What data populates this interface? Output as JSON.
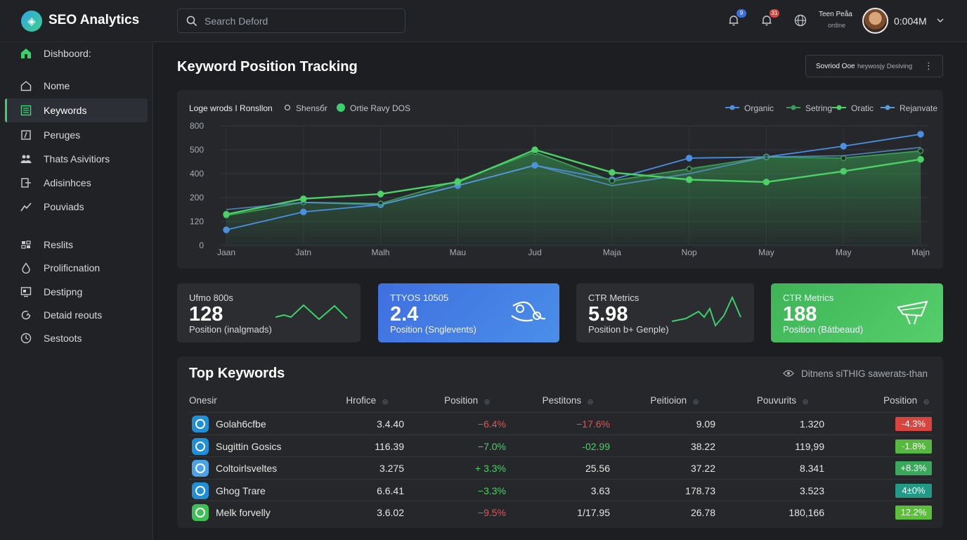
{
  "app": {
    "title": "SEO Analytics"
  },
  "search": {
    "placeholder": "Search Deford"
  },
  "notifications": {
    "badge1": "9",
    "badge2": "31"
  },
  "user": {
    "name": "Teen Peåa",
    "status": "ordine",
    "time": "0:004M"
  },
  "sidebar": {
    "items": [
      {
        "label": "Dishboord:",
        "icon": "home-filled-icon"
      },
      {
        "label": "Nome",
        "icon": "home-icon"
      },
      {
        "label": "Keywords",
        "icon": "list-icon",
        "active": true
      },
      {
        "label": "Peruges",
        "icon": "chart-icon"
      },
      {
        "label": "Thats Asivitiors",
        "icon": "users-icon"
      },
      {
        "label": "Adisinhces",
        "icon": "export-icon"
      },
      {
        "label": "Pouviads",
        "icon": "trend-icon"
      },
      {
        "label": "Reslits",
        "icon": "results-icon"
      },
      {
        "label": "Prolificnation",
        "icon": "drop-icon"
      },
      {
        "label": "Destipng",
        "icon": "desktop-icon"
      },
      {
        "label": "Detaid reouts",
        "icon": "refresh-icon"
      },
      {
        "label": "Sestoots",
        "icon": "clock-icon"
      }
    ]
  },
  "main": {
    "title": "Keyword Position Tracking",
    "period": {
      "label": "Sovriod Ooe",
      "sub": "heywosjy Deslving"
    }
  },
  "chart_data": {
    "type": "line",
    "title": "Loge wrods I Ronsllon",
    "toolbar": [
      "Shensбr",
      "Ortie Ravy DOS"
    ],
    "legend": [
      "Organic",
      "Setring",
      "Oratic",
      "Rejanvate"
    ],
    "legend_position": "top-right",
    "categories": [
      "Jaan",
      "Jatn",
      "Malh",
      "Mau",
      "Jud",
      "Maja",
      "Nop",
      "May",
      "May",
      "Majn"
    ],
    "y_ticks": [
      "800",
      "500",
      "400",
      "200",
      "120",
      "0"
    ],
    "series": [
      {
        "name": "Organic",
        "color": "#4a8fe0",
        "values": [
          0.13,
          0.28,
          0.34,
          0.5,
          0.67,
          0.55,
          0.73,
          0.74,
          0.83,
          0.93
        ]
      },
      {
        "name": "Setring",
        "color": "#3a9c55",
        "values": [
          0.25,
          0.36,
          0.35,
          0.54,
          0.78,
          0.54,
          0.64,
          0.74,
          0.73,
          0.79
        ]
      },
      {
        "name": "Oratic",
        "color": "#4bd166",
        "values": [
          0.26,
          0.39,
          0.43,
          0.53,
          0.8,
          0.61,
          0.55,
          0.53,
          0.62,
          0.72
        ]
      },
      {
        "name": "Rejanvate",
        "color": "#5a9bd8",
        "values": [
          0.3,
          0.36,
          0.34,
          0.5,
          0.67,
          0.5,
          0.6,
          0.74,
          0.75,
          0.82
        ]
      }
    ],
    "grid": true
  },
  "stats": [
    {
      "label": "Ufmo 800s",
      "value": "128",
      "sub": "Position (inalgmads)",
      "color": "#2b2d31",
      "fill": 0
    },
    {
      "label": "TTYOS 10505",
      "value": "2.4",
      "sub": "Position (Snglevents)",
      "color": "#4a7ee8",
      "icon": "route-icon"
    },
    {
      "label": "CTR Metrics",
      "value": "5.98",
      "sub": "Position b+ Genple)",
      "color": "#2b2d31"
    },
    {
      "label": "CTR Metrics",
      "value": "188",
      "sub": "Position (Bátbeaud)",
      "color": "#47c25f",
      "icon": "ship-icon"
    }
  ],
  "keywords": {
    "title": "Top Keywords",
    "hint": "Ditnens siTHIG sawerats-than",
    "columns": [
      "Onesir",
      "Hrofice",
      "Position",
      "Pestitons",
      "Peitioion",
      "Pouvurits",
      "Position"
    ],
    "rows": [
      {
        "name": "Golah6cfbe",
        "c1": "3.4.40",
        "c2": "−6.4%",
        "c2color": "#e35454",
        "c3": "−17.6%",
        "c3color": "#e35454",
        "c4": "9.09",
        "c5": "1.320",
        "c6": "-4.3%",
        "c6color": "#d8453f",
        "iconColor": "#1f8fd6"
      },
      {
        "name": "Sugittin Gosics",
        "c1": "116.39",
        "c2": "−7.0%",
        "c2color": "#4bd166",
        "c3": "-02.99",
        "c3color": "#4bd166",
        "c4": "38.22",
        "c5": "119,99",
        "c6": "-1.8%",
        "c6color": "#56b83e",
        "iconColor": "#1f8fd6"
      },
      {
        "name": "Coltoirlsveltes",
        "c1": "3.275",
        "c2": "+ 3.3%",
        "c2color": "#4bd166",
        "c3": "25.56",
        "c3color": "#e6e6e6",
        "c4": "37.22",
        "c5": "8.341",
        "c6": "+8.3%",
        "c6color": "#3aa85a",
        "iconColor": "#4aa3e8"
      },
      {
        "name": "Ghog Trare",
        "c1": "6.6.41",
        "c2": "−3.3%",
        "c2color": "#4bd166",
        "c3": "3.63",
        "c3color": "#e6e6e6",
        "c4": "178.73",
        "c5": "3.523",
        "c6": "4±0%",
        "c6color": "#239a85",
        "iconColor": "#1f8fd6"
      },
      {
        "name": "Melk forvelly",
        "c1": "3.6.02",
        "c2": "−9.5%",
        "c2color": "#e35454",
        "c3": "1/17.95",
        "c3color": "#e6e6e6",
        "c4": "26.78",
        "c5": "180,166",
        "c6": "12.2%",
        "c6color": "#5bbf3a",
        "iconColor": "#3cbf55"
      }
    ]
  }
}
